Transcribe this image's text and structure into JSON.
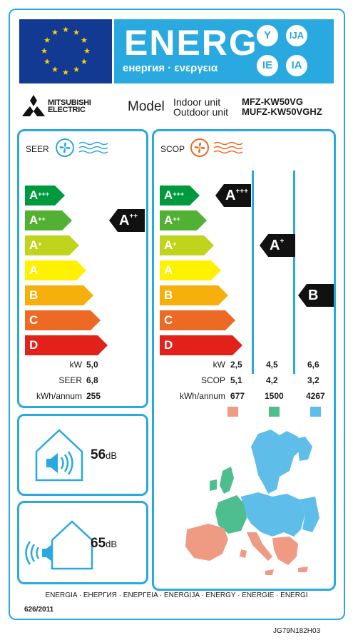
{
  "header": {
    "title": "ENERG",
    "subtitle": "енергия · ενεργεια",
    "lang_codes": [
      "Y",
      "IJA",
      "IE",
      "IA"
    ]
  },
  "brand": {
    "logo_line1": "MITSUBISHI",
    "logo_line2": "ELECTRIC",
    "model_label": "Model",
    "indoor_label": "Indoor unit",
    "outdoor_label": "Outdoor unit",
    "indoor_model": "MFZ-KW50VG",
    "outdoor_model": "MUFZ-KW50VGHZ"
  },
  "colors": {
    "frame": "#29a9e0",
    "class_colors": [
      "#009a3e",
      "#52b033",
      "#bfd41c",
      "#fff100",
      "#f7b00b",
      "#ec6a23",
      "#e2211a"
    ],
    "zone_colors": [
      "#ef9a82",
      "#4fbe8f",
      "#5ebde9"
    ]
  },
  "cooling": {
    "title": "SEER",
    "fan_icon": "fan-cold-icon",
    "classes": [
      "A+++",
      "A++",
      "A+",
      "A",
      "B",
      "C",
      "D"
    ],
    "rating": "A++",
    "rating_index": 1,
    "row_labels": [
      "kW",
      "SEER",
      "kWh/annum"
    ],
    "values": [
      "5,0",
      "6,8",
      "255"
    ]
  },
  "heating": {
    "title": "SCOP",
    "fan_icon": "fan-warm-icon",
    "classes": [
      "A+++",
      "A++",
      "A+",
      "A",
      "B",
      "C",
      "D"
    ],
    "row_labels": [
      "kW",
      "SCOP",
      "kWh/annum"
    ],
    "zones": [
      {
        "rating": "A+++",
        "rating_index": 0,
        "kw": "2,5",
        "scop": "5,1",
        "kwh": "677"
      },
      {
        "rating": "A+",
        "rating_index": 2,
        "kw": "4,5",
        "scop": "4,2",
        "kwh": "1500"
      },
      {
        "rating": "B",
        "rating_index": 4,
        "kw": "6,6",
        "scop": "3,2",
        "kwh": "4267"
      }
    ]
  },
  "noise": {
    "indoor_value": "56",
    "outdoor_value": "65",
    "unit": "dB"
  },
  "footer": {
    "languages": "ENERGIA · ЕНЕРГИЯ · ΕΝΕΡΓΕΙΑ · ENERGIJA · ENERGY · ENERGIE · ENERGI",
    "regulation": "626/2011",
    "code": "JG79N182H03"
  }
}
